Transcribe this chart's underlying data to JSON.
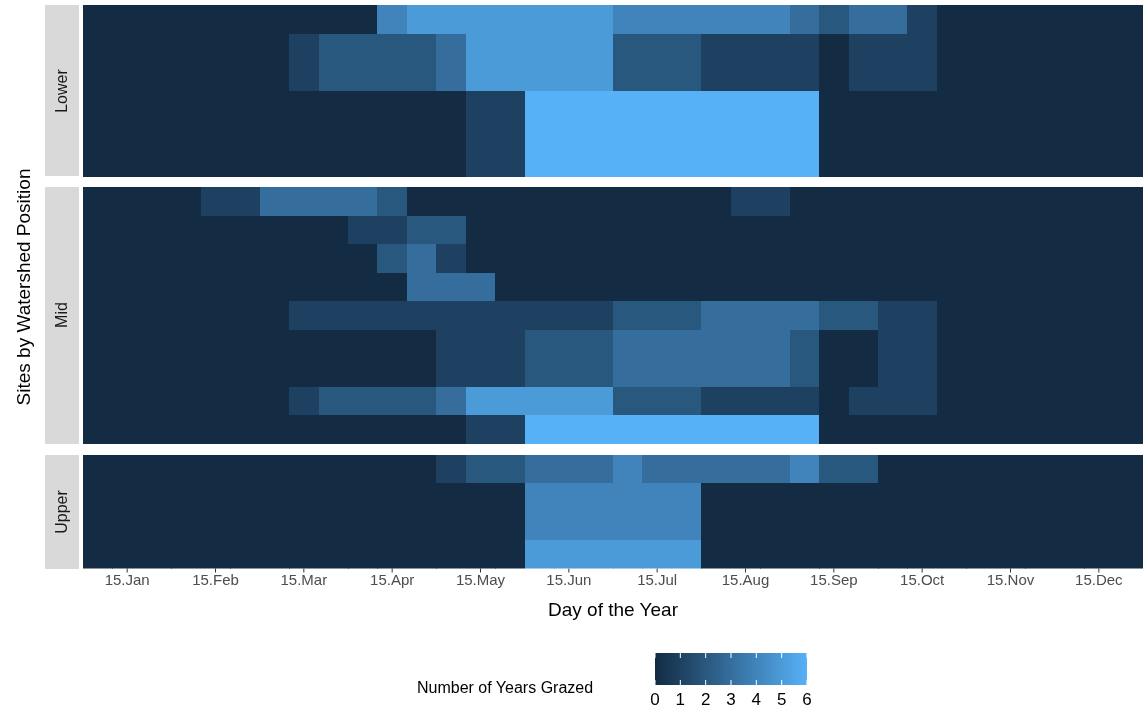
{
  "chart_data": {
    "type": "heatmap",
    "xlabel": "Day of the Year",
    "ylabel": "Sites by Watershed Position",
    "annotations": [
      "Lower",
      "Mid",
      "Upper"
    ],
    "categories": [
      null,
      "15.Jan",
      null,
      null,
      "15.Feb",
      null,
      null,
      "15.Mar",
      null,
      null,
      "15.Apr",
      null,
      null,
      "15.May",
      null,
      null,
      "15.Jun",
      null,
      null,
      "15.Jul",
      null,
      null,
      "15.Aug",
      null,
      null,
      "15.Sep",
      null,
      null,
      "15.Oct",
      null,
      null,
      "15.Nov",
      null,
      null,
      "15.Dec",
      null
    ],
    "y_categories": [
      null,
      null,
      null,
      null,
      null,
      null,
      null,
      null,
      null,
      null,
      null,
      null,
      null,
      null,
      null,
      null,
      null,
      null,
      null
    ],
    "cells": [
      [
        0,
        0,
        0,
        0,
        0,
        0,
        0,
        0,
        0,
        0,
        4,
        5,
        5,
        5,
        5,
        5,
        5,
        5,
        4,
        4,
        4,
        4,
        4,
        4,
        3,
        2,
        3,
        3,
        1,
        0,
        0,
        0,
        0,
        0,
        0,
        0
      ],
      [
        0,
        0,
        0,
        0,
        0,
        0,
        0,
        1,
        2,
        2,
        2,
        2,
        3,
        5,
        5,
        5,
        5,
        5,
        2,
        2,
        2,
        1,
        1,
        1,
        1,
        0,
        1,
        1,
        1,
        0,
        0,
        0,
        0,
        0,
        0,
        0
      ],
      [
        0,
        0,
        0,
        0,
        0,
        0,
        0,
        1,
        2,
        2,
        2,
        2,
        3,
        5,
        5,
        5,
        5,
        5,
        2,
        2,
        2,
        1,
        1,
        1,
        1,
        0,
        1,
        1,
        1,
        0,
        0,
        0,
        0,
        0,
        0,
        0
      ],
      [
        0,
        0,
        0,
        0,
        0,
        0,
        0,
        0,
        0,
        0,
        0,
        0,
        0,
        1,
        1,
        6,
        6,
        6,
        6,
        6,
        6,
        6,
        6,
        6,
        6,
        0,
        0,
        0,
        0,
        0,
        0,
        0,
        0,
        0,
        0,
        0
      ],
      [
        0,
        0,
        0,
        0,
        0,
        0,
        0,
        0,
        0,
        0,
        0,
        0,
        0,
        1,
        1,
        6,
        6,
        6,
        6,
        6,
        6,
        6,
        6,
        6,
        6,
        0,
        0,
        0,
        0,
        0,
        0,
        0,
        0,
        0,
        0,
        0
      ],
      [
        0,
        0,
        0,
        0,
        0,
        0,
        0,
        0,
        0,
        0,
        0,
        0,
        0,
        1,
        1,
        6,
        6,
        6,
        6,
        6,
        6,
        6,
        6,
        6,
        6,
        0,
        0,
        0,
        0,
        0,
        0,
        0,
        0,
        0,
        0,
        0
      ],
      [
        0,
        0,
        0,
        0,
        1,
        1,
        3,
        3,
        3,
        3,
        2,
        0,
        0,
        0,
        0,
        0,
        0,
        0,
        0,
        0,
        0,
        0,
        1,
        1,
        0,
        0,
        0,
        0,
        0,
        0,
        0,
        0,
        0,
        0,
        0,
        0
      ],
      [
        0,
        0,
        0,
        0,
        0,
        0,
        0,
        0,
        0,
        1,
        1,
        2,
        2,
        0,
        0,
        0,
        0,
        0,
        0,
        0,
        0,
        0,
        0,
        0,
        0,
        0,
        0,
        0,
        0,
        0,
        0,
        0,
        0,
        0,
        0,
        0
      ],
      [
        0,
        0,
        0,
        0,
        0,
        0,
        0,
        0,
        0,
        0,
        2,
        3,
        1,
        0,
        0,
        0,
        0,
        0,
        0,
        0,
        0,
        0,
        0,
        0,
        0,
        0,
        0,
        0,
        0,
        0,
        0,
        0,
        0,
        0,
        0,
        0
      ],
      [
        0,
        0,
        0,
        0,
        0,
        0,
        0,
        0,
        0,
        0,
        0,
        3,
        3,
        3,
        0,
        0,
        0,
        0,
        0,
        0,
        0,
        0,
        0,
        0,
        0,
        0,
        0,
        0,
        0,
        0,
        0,
        0,
        0,
        0,
        0,
        0
      ],
      [
        0,
        0,
        0,
        0,
        0,
        0,
        0,
        1,
        1,
        1,
        1,
        1,
        1,
        1,
        1,
        1,
        1,
        1,
        2,
        2,
        2,
        3,
        3,
        3,
        3,
        2,
        2,
        1,
        1,
        0,
        0,
        0,
        0,
        0,
        0,
        0
      ],
      [
        0,
        0,
        0,
        0,
        0,
        0,
        0,
        0,
        0,
        0,
        0,
        0,
        1,
        1,
        1,
        2,
        2,
        2,
        3,
        3,
        3,
        3,
        3,
        3,
        2,
        0,
        0,
        1,
        1,
        0,
        0,
        0,
        0,
        0,
        0,
        0
      ],
      [
        0,
        0,
        0,
        0,
        0,
        0,
        0,
        0,
        0,
        0,
        0,
        0,
        1,
        1,
        1,
        2,
        2,
        2,
        3,
        3,
        3,
        3,
        3,
        3,
        2,
        0,
        0,
        1,
        1,
        0,
        0,
        0,
        0,
        0,
        0,
        0
      ],
      [
        0,
        0,
        0,
        0,
        0,
        0,
        0,
        1,
        2,
        2,
        2,
        2,
        3,
        5,
        5,
        5,
        5,
        5,
        2,
        2,
        2,
        1,
        1,
        1,
        1,
        0,
        1,
        1,
        1,
        0,
        0,
        0,
        0,
        0,
        0,
        0
      ],
      [
        0,
        0,
        0,
        0,
        0,
        0,
        0,
        0,
        0,
        0,
        0,
        0,
        0,
        1,
        1,
        6,
        6,
        6,
        6,
        6,
        6,
        6,
        6,
        6,
        6,
        0,
        0,
        0,
        0,
        0,
        0,
        0,
        0,
        0,
        0,
        0
      ],
      [
        0,
        0,
        0,
        0,
        0,
        0,
        0,
        0,
        0,
        0,
        0,
        0,
        1,
        2,
        2,
        3,
        3,
        3,
        4,
        3,
        3,
        3,
        3,
        3,
        4,
        2,
        2,
        0,
        0,
        0,
        0,
        0,
        0,
        0,
        0,
        0
      ],
      [
        0,
        0,
        0,
        0,
        0,
        0,
        0,
        0,
        0,
        0,
        0,
        0,
        0,
        0,
        0,
        4,
        4,
        4,
        4,
        4,
        4,
        0,
        0,
        0,
        0,
        0,
        0,
        0,
        0,
        0,
        0,
        0,
        0,
        0,
        0,
        0
      ],
      [
        0,
        0,
        0,
        0,
        0,
        0,
        0,
        0,
        0,
        0,
        0,
        0,
        0,
        0,
        0,
        4,
        4,
        4,
        4,
        4,
        4,
        0,
        0,
        0,
        0,
        0,
        0,
        0,
        0,
        0,
        0,
        0,
        0,
        0,
        0,
        0
      ],
      [
        0,
        0,
        0,
        0,
        0,
        0,
        0,
        0,
        0,
        0,
        0,
        0,
        0,
        0,
        0,
        5,
        5,
        5,
        5,
        5,
        5,
        0,
        0,
        0,
        0,
        0,
        0,
        0,
        0,
        0,
        0,
        0,
        0,
        0,
        0,
        0
      ]
    ],
    "clabel": "Number of Years Grazed",
    "clim": [
      0,
      6
    ],
    "cticks": [
      0,
      1,
      2,
      3,
      4,
      5,
      6
    ]
  }
}
